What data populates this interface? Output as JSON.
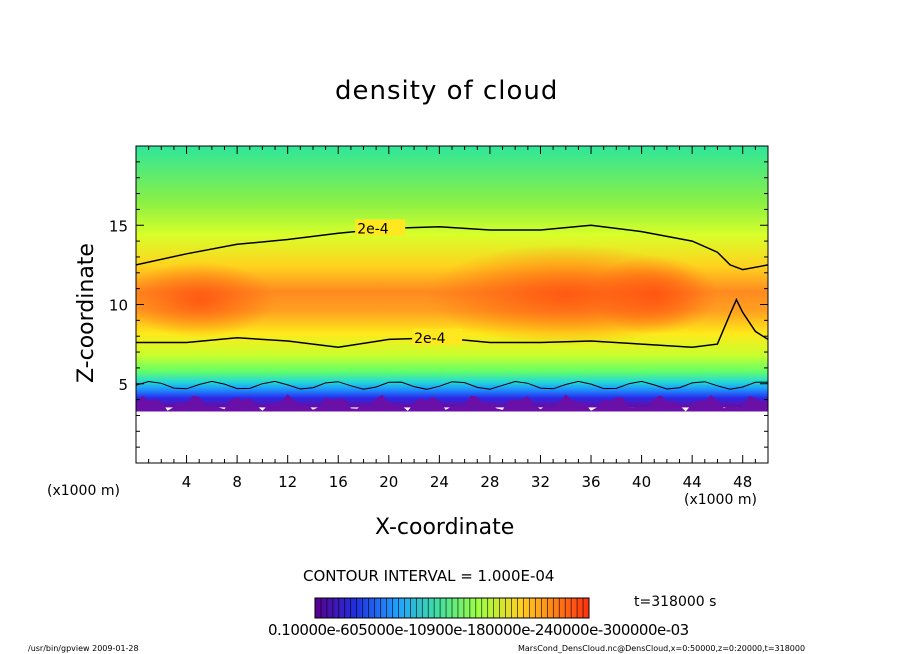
{
  "chart_data": {
    "type": "heatmap",
    "title": "density of cloud",
    "xlabel": "X-coordinate",
    "ylabel": "Z-coordinate",
    "x_unit": "(x1000 m)",
    "y_unit": "(x1000 m)",
    "xlim": [
      0,
      50
    ],
    "ylim": [
      0,
      20
    ],
    "xticks": [
      4,
      8,
      12,
      16,
      20,
      24,
      28,
      32,
      36,
      40,
      44,
      48
    ],
    "yticks": [
      5,
      10,
      15
    ],
    "contour_label": "2e-4",
    "contour_interval": "CONTOUR INTERVAL = 1.000E-04",
    "time_label": "t=318000 s",
    "colorbar_ticks": "0.10000e-605000e-10900e-180000e-240000e-300000e-03",
    "upper_contour": [
      [
        0,
        12.5
      ],
      [
        4,
        13.2
      ],
      [
        8,
        13.8
      ],
      [
        12,
        14.1
      ],
      [
        16,
        14.5
      ],
      [
        20,
        14.8
      ],
      [
        24,
        14.9
      ],
      [
        28,
        14.7
      ],
      [
        32,
        14.7
      ],
      [
        36,
        15.0
      ],
      [
        40,
        14.6
      ],
      [
        44,
        14.0
      ],
      [
        46,
        13.3
      ],
      [
        47,
        12.5
      ],
      [
        48,
        12.2
      ],
      [
        50,
        12.5
      ]
    ],
    "lower_contour": [
      [
        0,
        7.6
      ],
      [
        4,
        7.6
      ],
      [
        8,
        7.9
      ],
      [
        12,
        7.7
      ],
      [
        16,
        7.3
      ],
      [
        20,
        7.8
      ],
      [
        24,
        7.9
      ],
      [
        28,
        7.6
      ],
      [
        32,
        7.6
      ],
      [
        36,
        7.7
      ],
      [
        40,
        7.5
      ],
      [
        44,
        7.3
      ],
      [
        46,
        7.5
      ],
      [
        47,
        9.4
      ],
      [
        47.5,
        10.3
      ],
      [
        48,
        9.5
      ],
      [
        49,
        8.3
      ],
      [
        50,
        7.8
      ]
    ],
    "cloud_base_km": 3.5
  },
  "footer": {
    "left": "/usr/bin/gpview  2009-01-28",
    "right": "MarsCond_DensCloud.nc@DensCloud,x=0:50000,z=0:20000,t=318000"
  }
}
